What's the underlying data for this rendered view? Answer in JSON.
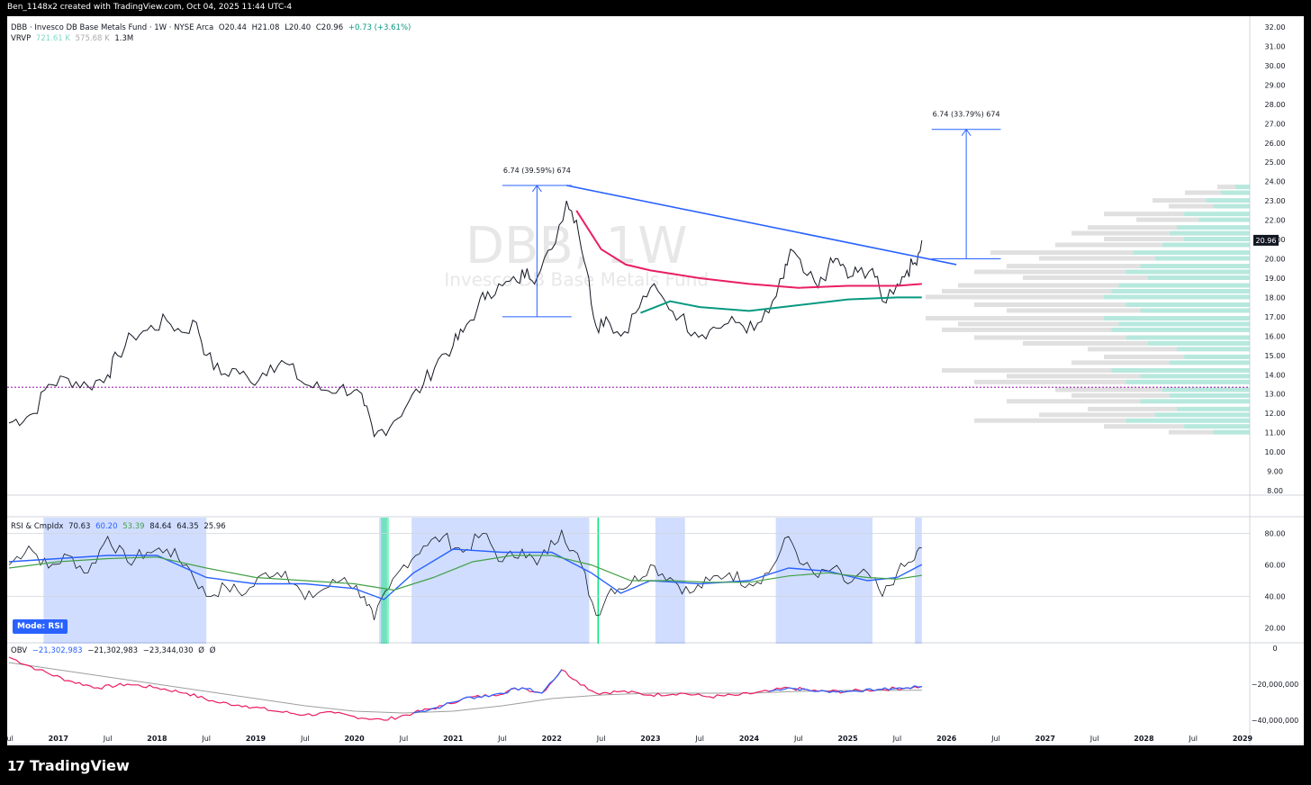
{
  "topbar": {
    "caption": "Ben_1148x2 created with TradingView.com, Oct 04, 2025 11:44 UTC-4"
  },
  "brand": {
    "name": "TradingView"
  },
  "legend": {
    "symbol": "DBB · Invesco DB Base Metals Fund · 1W · NYSE Arca",
    "open": "O20.44",
    "high": "H21.08",
    "low": "L20.40",
    "close": "C20.96",
    "change": "+0.73 (+3.61%)",
    "vrvp_label": "VRVP",
    "vrvp_v1": "721.61 K",
    "vrvp_v2": "575.68 K",
    "vrvp_v3": "1.3M"
  },
  "watermark": {
    "main": "DBB, 1W",
    "sub": "Invesco DB Base Metals Fund"
  },
  "price_badge": "20.96",
  "rsi_legend": {
    "label": "RSI & CmpIdx",
    "v1": "70.63",
    "v2": "60.20",
    "v3": "53.39",
    "v4": "84.64",
    "v5": "64.35",
    "v6": "25.96"
  },
  "mode_badge": "Mode: RSI",
  "obv_legend": {
    "label": "OBV",
    "v1": "−21,302,983",
    "v2": "−21,302,983",
    "v3": "−23,344,030",
    "v4": "Ø",
    "v5": "Ø"
  },
  "measure_labels": {
    "left": "6.74 (39.59%) 674",
    "right": "6.74 (33.79%) 674"
  },
  "colors": {
    "up": "#131722",
    "trendline": "#2962ff",
    "ma_red": "#e91e63",
    "ma_green": "#089981",
    "support": "#9c27b0",
    "rsi_blue": "#2962ff",
    "rsi_green": "#43a047",
    "obv_main": "#e91e63",
    "obv_up": "#2962ff",
    "obv_ma": "#9e9e9e"
  },
  "chart_data": {
    "type": "candlestick",
    "x_axis_labels": [
      "Jul",
      "2017",
      "Jul",
      "2018",
      "Jul",
      "2019",
      "Jul",
      "2020",
      "Jul",
      "2021",
      "Jul",
      "2022",
      "Jul",
      "2023",
      "Jul",
      "2024",
      "Jul",
      "2025",
      "Jul",
      "2026",
      "Jul",
      "2027",
      "Jul",
      "2028",
      "Jul",
      "2029"
    ],
    "x_axis_dates": [
      2016.5,
      2017.0,
      2017.5,
      2018.0,
      2018.5,
      2019.0,
      2019.5,
      2020.0,
      2020.5,
      2021.0,
      2021.5,
      2022.0,
      2022.5,
      2023.0,
      2023.5,
      2024.0,
      2024.5,
      2025.0,
      2025.5,
      2026.0,
      2026.5,
      2027.0,
      2027.5,
      2028.0,
      2028.5,
      2029.0
    ],
    "price_axis": {
      "ticks": [
        "8.00",
        "9.00",
        "10.00",
        "11.00",
        "12.00",
        "13.00",
        "14.00",
        "15.00",
        "16.00",
        "17.00",
        "18.00",
        "19.00",
        "20.00",
        "21.00",
        "22.00",
        "23.00",
        "24.00",
        "25.00",
        "26.00",
        "27.00",
        "28.00",
        "29.00",
        "30.00",
        "31.00",
        "32.00"
      ],
      "ylim": [
        8,
        32
      ]
    },
    "price_path": [
      [
        2016.5,
        11.5
      ],
      [
        2016.75,
        12.0
      ],
      [
        2016.9,
        13.5
      ],
      [
        2017.1,
        13.8
      ],
      [
        2017.3,
        13.4
      ],
      [
        2017.5,
        14.0
      ],
      [
        2017.6,
        15.0
      ],
      [
        2017.75,
        16.0
      ],
      [
        2017.9,
        16.3
      ],
      [
        2018.1,
        16.8
      ],
      [
        2018.25,
        16.2
      ],
      [
        2018.4,
        16.7
      ],
      [
        2018.5,
        15.0
      ],
      [
        2018.65,
        14.0
      ],
      [
        2018.8,
        14.3
      ],
      [
        2018.95,
        13.6
      ],
      [
        2019.15,
        14.5
      ],
      [
        2019.3,
        14.6
      ],
      [
        2019.5,
        13.5
      ],
      [
        2019.7,
        13.2
      ],
      [
        2019.85,
        13.3
      ],
      [
        2020.0,
        13.2
      ],
      [
        2020.1,
        12.4
      ],
      [
        2020.2,
        10.8
      ],
      [
        2020.4,
        11.6
      ],
      [
        2020.55,
        12.6
      ],
      [
        2020.7,
        13.5
      ],
      [
        2020.85,
        14.8
      ],
      [
        2021.0,
        15.5
      ],
      [
        2021.1,
        16.2
      ],
      [
        2021.25,
        17.5
      ],
      [
        2021.35,
        18.3
      ],
      [
        2021.5,
        18.6
      ],
      [
        2021.65,
        18.8
      ],
      [
        2021.75,
        19.5
      ],
      [
        2021.85,
        19.0
      ],
      [
        2022.0,
        20.5
      ],
      [
        2022.15,
        23.0
      ],
      [
        2022.25,
        22.0
      ],
      [
        2022.35,
        19.5
      ],
      [
        2022.45,
        16.5
      ],
      [
        2022.55,
        17.0
      ],
      [
        2022.7,
        16.0
      ],
      [
        2022.85,
        17.2
      ],
      [
        2023.0,
        18.5
      ],
      [
        2023.15,
        17.8
      ],
      [
        2023.3,
        17.0
      ],
      [
        2023.45,
        16.2
      ],
      [
        2023.6,
        16.3
      ],
      [
        2023.75,
        16.6
      ],
      [
        2023.9,
        16.7
      ],
      [
        2024.05,
        16.3
      ],
      [
        2024.2,
        17.2
      ],
      [
        2024.35,
        19.0
      ],
      [
        2024.42,
        20.5
      ],
      [
        2024.55,
        19.3
      ],
      [
        2024.7,
        18.5
      ],
      [
        2024.8,
        19.5
      ],
      [
        2024.9,
        20.0
      ],
      [
        2025.0,
        19.0
      ],
      [
        2025.1,
        19.3
      ],
      [
        2025.25,
        19.5
      ],
      [
        2025.35,
        17.8
      ],
      [
        2025.5,
        18.7
      ],
      [
        2025.6,
        19.4
      ],
      [
        2025.68,
        19.8
      ],
      [
        2025.75,
        20.96
      ]
    ],
    "ma_red": [
      [
        2022.25,
        22.5
      ],
      [
        2022.5,
        20.5
      ],
      [
        2022.75,
        19.7
      ],
      [
        2023.0,
        19.4
      ],
      [
        2023.5,
        19.0
      ],
      [
        2024.0,
        18.7
      ],
      [
        2024.5,
        18.5
      ],
      [
        2025.0,
        18.6
      ],
      [
        2025.5,
        18.6
      ],
      [
        2025.75,
        18.7
      ]
    ],
    "ma_green": [
      [
        2022.9,
        17.2
      ],
      [
        2023.2,
        17.8
      ],
      [
        2023.5,
        17.5
      ],
      [
        2024.0,
        17.3
      ],
      [
        2024.5,
        17.6
      ],
      [
        2025.0,
        17.9
      ],
      [
        2025.5,
        18.0
      ],
      [
        2025.75,
        18.0
      ]
    ],
    "trendline": [
      [
        2022.15,
        23.8
      ],
      [
        2026.1,
        19.7
      ]
    ],
    "support_level": 13.35,
    "measure_left": {
      "x": 2021.85,
      "from": 17.0,
      "to": 23.8,
      "label_value": 6.74,
      "pct": 39.59,
      "bars": 674
    },
    "measure_right": {
      "x": 2026.2,
      "from": 20.0,
      "to": 26.7,
      "label_value": 6.74,
      "pct": 33.79,
      "bars": 674
    },
    "last_close": 20.96,
    "rsi_axis": {
      "ticks": [
        "20.00",
        "40.00",
        "60.00",
        "80.00"
      ],
      "ylim": [
        10,
        90
      ]
    },
    "rsi_path": [
      [
        2016.5,
        60
      ],
      [
        2016.7,
        72
      ],
      [
        2016.9,
        58
      ],
      [
        2017.1,
        66
      ],
      [
        2017.3,
        55
      ],
      [
        2017.5,
        78
      ],
      [
        2017.7,
        62
      ],
      [
        2017.9,
        68
      ],
      [
        2018.1,
        70
      ],
      [
        2018.3,
        60
      ],
      [
        2018.5,
        40
      ],
      [
        2018.7,
        46
      ],
      [
        2018.9,
        42
      ],
      [
        2019.1,
        55
      ],
      [
        2019.3,
        56
      ],
      [
        2019.5,
        38
      ],
      [
        2019.7,
        45
      ],
      [
        2019.9,
        52
      ],
      [
        2020.1,
        40
      ],
      [
        2020.2,
        25
      ],
      [
        2020.35,
        45
      ],
      [
        2020.5,
        60
      ],
      [
        2020.7,
        72
      ],
      [
        2020.9,
        78
      ],
      [
        2021.1,
        68
      ],
      [
        2021.3,
        80
      ],
      [
        2021.5,
        62
      ],
      [
        2021.7,
        70
      ],
      [
        2021.85,
        60
      ],
      [
        2022.1,
        82
      ],
      [
        2022.3,
        60
      ],
      [
        2022.45,
        28
      ],
      [
        2022.6,
        45
      ],
      [
        2022.8,
        48
      ],
      [
        2023.0,
        60
      ],
      [
        2023.2,
        52
      ],
      [
        2023.4,
        42
      ],
      [
        2023.6,
        50
      ],
      [
        2023.8,
        55
      ],
      [
        2024.0,
        48
      ],
      [
        2024.2,
        55
      ],
      [
        2024.4,
        78
      ],
      [
        2024.55,
        60
      ],
      [
        2024.7,
        52
      ],
      [
        2024.85,
        58
      ],
      [
        2025.0,
        48
      ],
      [
        2025.2,
        55
      ],
      [
        2025.35,
        40
      ],
      [
        2025.5,
        55
      ],
      [
        2025.65,
        62
      ],
      [
        2025.75,
        70.63
      ]
    ],
    "rsi_smooth": [
      [
        2016.5,
        62
      ],
      [
        2017.0,
        64
      ],
      [
        2017.5,
        66
      ],
      [
        2018.0,
        66
      ],
      [
        2018.5,
        52
      ],
      [
        2019.0,
        48
      ],
      [
        2019.5,
        48
      ],
      [
        2020.0,
        45
      ],
      [
        2020.3,
        38
      ],
      [
        2020.6,
        55
      ],
      [
        2021.0,
        70
      ],
      [
        2021.5,
        68
      ],
      [
        2022.0,
        68
      ],
      [
        2022.4,
        55
      ],
      [
        2022.7,
        42
      ],
      [
        2023.0,
        50
      ],
      [
        2023.5,
        48
      ],
      [
        2024.0,
        50
      ],
      [
        2024.4,
        58
      ],
      [
        2024.8,
        56
      ],
      [
        2025.2,
        50
      ],
      [
        2025.5,
        52
      ],
      [
        2025.75,
        60.2
      ]
    ],
    "rsi_ma": [
      [
        2016.5,
        58
      ],
      [
        2017.0,
        62
      ],
      [
        2017.5,
        64
      ],
      [
        2018.0,
        65
      ],
      [
        2018.5,
        58
      ],
      [
        2019.0,
        52
      ],
      [
        2019.5,
        50
      ],
      [
        2020.0,
        48
      ],
      [
        2020.4,
        44
      ],
      [
        2020.8,
        52
      ],
      [
        2021.2,
        62
      ],
      [
        2021.6,
        66
      ],
      [
        2022.0,
        66
      ],
      [
        2022.4,
        60
      ],
      [
        2022.8,
        50
      ],
      [
        2023.2,
        50
      ],
      [
        2023.6,
        49
      ],
      [
        2024.0,
        49
      ],
      [
        2024.4,
        53
      ],
      [
        2024.8,
        55
      ],
      [
        2025.2,
        52
      ],
      [
        2025.5,
        51
      ],
      [
        2025.75,
        53.39
      ]
    ],
    "rsi_highlight_ranges": [
      [
        2016.85,
        2018.5
      ],
      [
        2020.25,
        2020.33
      ],
      [
        2020.58,
        2022.38
      ],
      [
        2023.05,
        2023.35
      ],
      [
        2024.27,
        2025.25
      ],
      [
        2025.68,
        2025.75
      ]
    ],
    "rsi_green_ranges": [
      [
        2020.27,
        2020.35
      ]
    ],
    "obv_axis": {
      "ticks": [
        "0",
        "−20,000,000",
        "−40,000,000"
      ],
      "ylim": [
        -45000000,
        5000000
      ]
    },
    "obv_path": [
      [
        2016.5,
        -5000000
      ],
      [
        2016.8,
        -12000000
      ],
      [
        2017.1,
        -18000000
      ],
      [
        2017.4,
        -22000000
      ],
      [
        2017.7,
        -20000000
      ],
      [
        2018.0,
        -22000000
      ],
      [
        2018.3,
        -25000000
      ],
      [
        2018.6,
        -30000000
      ],
      [
        2018.9,
        -32000000
      ],
      [
        2019.2,
        -35000000
      ],
      [
        2019.5,
        -37000000
      ],
      [
        2019.8,
        -36000000
      ],
      [
        2020.0,
        -38000000
      ],
      [
        2020.3,
        -40000000
      ],
      [
        2020.6,
        -36000000
      ],
      [
        2020.9,
        -32000000
      ],
      [
        2021.1,
        -28000000
      ],
      [
        2021.4,
        -26000000
      ],
      [
        2021.7,
        -22000000
      ],
      [
        2021.9,
        -25000000
      ],
      [
        2022.1,
        -12000000
      ],
      [
        2022.25,
        -18000000
      ],
      [
        2022.45,
        -25000000
      ],
      [
        2022.7,
        -24000000
      ],
      [
        2023.0,
        -26000000
      ],
      [
        2023.3,
        -25000000
      ],
      [
        2023.6,
        -27000000
      ],
      [
        2023.9,
        -26000000
      ],
      [
        2024.2,
        -24000000
      ],
      [
        2024.4,
        -22000000
      ],
      [
        2024.7,
        -24000000
      ],
      [
        2025.0,
        -24000000
      ],
      [
        2025.3,
        -23000000
      ],
      [
        2025.6,
        -22000000
      ],
      [
        2025.75,
        -21302983
      ]
    ],
    "obv_ma": [
      [
        2016.5,
        -8000000
      ],
      [
        2017.0,
        -12000000
      ],
      [
        2017.5,
        -16000000
      ],
      [
        2018.0,
        -20000000
      ],
      [
        2018.5,
        -24000000
      ],
      [
        2019.0,
        -28000000
      ],
      [
        2019.5,
        -32000000
      ],
      [
        2020.0,
        -35000000
      ],
      [
        2020.5,
        -36000000
      ],
      [
        2021.0,
        -35000000
      ],
      [
        2021.5,
        -32000000
      ],
      [
        2022.0,
        -28000000
      ],
      [
        2022.5,
        -26000000
      ],
      [
        2023.0,
        -25000000
      ],
      [
        2023.5,
        -25000000
      ],
      [
        2024.0,
        -25000000
      ],
      [
        2024.5,
        -24000000
      ],
      [
        2025.0,
        -23500000
      ],
      [
        2025.75,
        -23344030
      ]
    ],
    "volume_profile": [
      [
        23.7,
        0.1
      ],
      [
        23.4,
        0.2
      ],
      [
        23.0,
        0.3
      ],
      [
        22.7,
        0.25
      ],
      [
        22.3,
        0.45
      ],
      [
        22.0,
        0.35
      ],
      [
        21.6,
        0.5
      ],
      [
        21.3,
        0.55
      ],
      [
        21.0,
        0.45
      ],
      [
        20.7,
        0.6
      ],
      [
        20.3,
        0.8
      ],
      [
        20.0,
        0.65
      ],
      [
        19.6,
        0.75
      ],
      [
        19.3,
        0.85
      ],
      [
        19.0,
        0.7
      ],
      [
        18.6,
        0.9
      ],
      [
        18.3,
        0.95
      ],
      [
        18.0,
        1.0
      ],
      [
        17.6,
        0.85
      ],
      [
        17.3,
        0.75
      ],
      [
        16.9,
        1.0
      ],
      [
        16.6,
        0.9
      ],
      [
        16.3,
        0.95
      ],
      [
        15.9,
        0.85
      ],
      [
        15.6,
        0.7
      ],
      [
        15.3,
        0.5
      ],
      [
        14.9,
        0.45
      ],
      [
        14.6,
        0.55
      ],
      [
        14.2,
        0.95
      ],
      [
        13.9,
        0.75
      ],
      [
        13.6,
        0.85
      ],
      [
        13.2,
        0.6
      ],
      [
        12.9,
        0.55
      ],
      [
        12.6,
        0.75
      ],
      [
        12.2,
        0.5
      ],
      [
        11.9,
        0.65
      ],
      [
        11.6,
        0.85
      ],
      [
        11.3,
        0.45
      ],
      [
        11.0,
        0.25
      ]
    ]
  }
}
